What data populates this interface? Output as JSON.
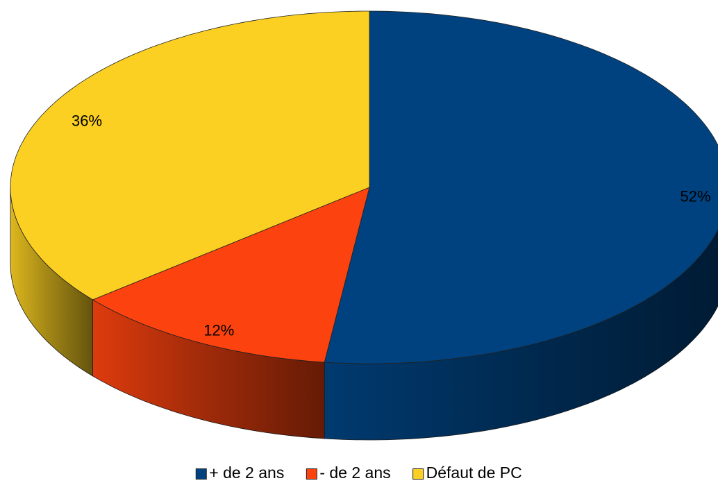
{
  "chart_data": {
    "type": "pie",
    "categories": [
      "+ de 2 ans",
      "- de 2 ans",
      "Défaut de PC"
    ],
    "values": [
      52,
      12,
      36
    ],
    "value_labels": [
      "52%",
      "12%",
      "36%"
    ],
    "colors": [
      "#00427f",
      "#fc430f",
      "#fbd022"
    ],
    "legend": "bottom"
  }
}
